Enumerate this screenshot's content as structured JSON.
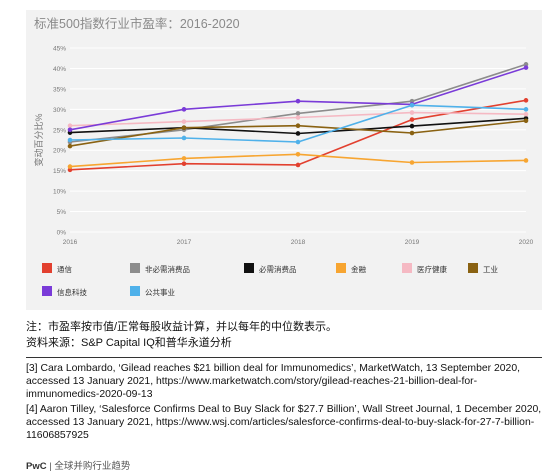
{
  "chart_data": {
    "type": "line",
    "title": "标准500指数行业市盈率：2016-2020",
    "ylabel": "变动百分比%",
    "xlabel": "",
    "x": [
      "2016",
      "2017",
      "2018",
      "2019",
      "2020"
    ],
    "ylim": [
      0,
      45
    ],
    "yticks": [
      "0%",
      "5%",
      "10%",
      "15%",
      "20%",
      "25%",
      "30%",
      "35%",
      "40%",
      "45%"
    ],
    "grid": true,
    "legend_position": "bottom",
    "series": [
      {
        "name": "通信",
        "color": "#e2402f",
        "values": [
          15.2,
          16.7,
          16.4,
          27.5,
          32.2
        ]
      },
      {
        "name": "非必需消费品",
        "color": "#8c8c8c",
        "values": [
          22.0,
          25.0,
          29.0,
          32.0,
          41.0
        ]
      },
      {
        "name": "必需消费品",
        "color": "#111111",
        "values": [
          24.3,
          25.5,
          24.1,
          25.9,
          27.8
        ]
      },
      {
        "name": "金融",
        "color": "#f7a531",
        "values": [
          16.0,
          18.0,
          19.0,
          17.0,
          17.5
        ]
      },
      {
        "name": "医疗健康",
        "color": "#f5b9c3",
        "values": [
          26.0,
          27.0,
          28.0,
          29.2,
          28.8
        ]
      },
      {
        "name": "工业",
        "color": "#8a6212",
        "values": [
          21.0,
          25.5,
          26.0,
          24.2,
          27.2
        ]
      },
      {
        "name": "信息科技",
        "color": "#7a3bd8",
        "values": [
          25.0,
          30.0,
          32.0,
          31.2,
          40.2
        ]
      },
      {
        "name": "公共事业",
        "color": "#4fb1ea",
        "values": [
          22.5,
          23.0,
          22.0,
          31.0,
          30.0
        ]
      }
    ]
  },
  "notes": {
    "line1": "注：市盈率按市值/正常每股收益计算，并以每年的中位数表示。",
    "line2": "资料来源：S&P Capital IQ和普华永道分析"
  },
  "references": {
    "ref3": "[3] Cara Lombardo, ‘Gilead reaches $21 billion deal for Immunomedics’, MarketWatch, 13 September 2020, accessed 13 January 2021, https://www.marketwatch.com/story/gilead-reaches-21-billion-deal-for-immunomedics-2020-09-13",
    "ref4": "[4] Aaron Tilley, ‘Salesforce Confirms Deal to Buy Slack for $27.7 Billion’, Wall Street Journal, 1 December 2020, accessed 13 January 2021, https://www.wsj.com/articles/salesforce-confirms-deal-to-buy-slack-for-27-7-billion-11606857925"
  },
  "footer": {
    "brand": "PwC",
    "separator": "|",
    "text": "全球并购行业趋势"
  }
}
